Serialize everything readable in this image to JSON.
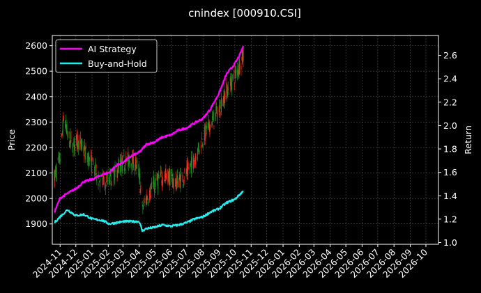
{
  "chart_data": {
    "type": "line",
    "title": "cnindex [000910.CSI]",
    "ylabel_left": "Price",
    "ylabel_right": "Return",
    "left_ylim": [
      1820,
      2640
    ],
    "left_yticks": [
      1900,
      2000,
      2100,
      2200,
      2300,
      2400,
      2500,
      2600
    ],
    "right_ylim": [
      0.985,
      2.77
    ],
    "right_yticks": [
      "1.0",
      "1.2",
      "1.4",
      "1.6",
      "1.8",
      "2.0",
      "2.2",
      "2.4",
      "2.6"
    ],
    "x_ticks": [
      "2024-11",
      "2024-12",
      "2025-01",
      "2025-02",
      "2025-03",
      "2025-04",
      "2025-05",
      "2025-06",
      "2025-07",
      "2025-08",
      "2025-09",
      "2025-10",
      "2025-11",
      "2025-12",
      "2026-01",
      "2026-02",
      "2026-03",
      "2026-04",
      "2026-05",
      "2026-06",
      "2026-07",
      "2026-08",
      "2026-09",
      "2026-10"
    ],
    "grid": true,
    "legend_position": "top-left",
    "colors": {
      "up": "#ff2a1a",
      "down": "#1f8f1f",
      "ai": "#ff00ff",
      "bh": "#22eeee",
      "background": "#000000"
    },
    "series": [
      {
        "name": "AI Strategy",
        "axis": "right",
        "points": [
          [
            "2024-10-21",
            1.26
          ],
          [
            "2024-11-01",
            1.38
          ],
          [
            "2024-11-15",
            1.42
          ],
          [
            "2024-12-01",
            1.46
          ],
          [
            "2024-12-16",
            1.52
          ],
          [
            "2025-01-02",
            1.54
          ],
          [
            "2025-01-20",
            1.58
          ],
          [
            "2025-02-03",
            1.6
          ],
          [
            "2025-02-17",
            1.66
          ],
          [
            "2025-03-03",
            1.69
          ],
          [
            "2025-03-17",
            1.74
          ],
          [
            "2025-04-01",
            1.77
          ],
          [
            "2025-04-15",
            1.84
          ],
          [
            "2025-05-01",
            1.86
          ],
          [
            "2025-05-15",
            1.9
          ],
          [
            "2025-06-01",
            1.92
          ],
          [
            "2025-06-15",
            1.96
          ],
          [
            "2025-07-01",
            1.98
          ],
          [
            "2025-07-15",
            2.02
          ],
          [
            "2025-08-01",
            2.06
          ],
          [
            "2025-08-15",
            2.14
          ],
          [
            "2025-09-01",
            2.28
          ],
          [
            "2025-09-15",
            2.44
          ],
          [
            "2025-10-01",
            2.53
          ],
          [
            "2025-10-10",
            2.6
          ],
          [
            "2025-10-17",
            2.68
          ]
        ]
      },
      {
        "name": "Buy-and-Hold",
        "axis": "right",
        "points": [
          [
            "2024-10-21",
            1.17
          ],
          [
            "2024-11-01",
            1.22
          ],
          [
            "2024-11-15",
            1.28
          ],
          [
            "2024-12-01",
            1.23
          ],
          [
            "2024-12-16",
            1.24
          ],
          [
            "2025-01-02",
            1.2
          ],
          [
            "2025-01-20",
            1.19
          ],
          [
            "2025-02-03",
            1.16
          ],
          [
            "2025-02-17",
            1.17
          ],
          [
            "2025-03-03",
            1.18
          ],
          [
            "2025-03-17",
            1.18
          ],
          [
            "2025-04-01",
            1.18
          ],
          [
            "2025-04-07",
            1.1
          ],
          [
            "2025-04-15",
            1.12
          ],
          [
            "2025-05-01",
            1.13
          ],
          [
            "2025-05-15",
            1.15
          ],
          [
            "2025-06-01",
            1.14
          ],
          [
            "2025-06-15",
            1.15
          ],
          [
            "2025-07-01",
            1.17
          ],
          [
            "2025-07-15",
            1.2
          ],
          [
            "2025-08-01",
            1.22
          ],
          [
            "2025-08-15",
            1.26
          ],
          [
            "2025-09-01",
            1.29
          ],
          [
            "2025-09-15",
            1.34
          ],
          [
            "2025-10-01",
            1.37
          ],
          [
            "2025-10-17",
            1.44
          ]
        ]
      }
    ],
    "price_path": [
      [
        "2024-10-21",
        2080
      ],
      [
        "2024-11-01",
        2160
      ],
      [
        "2024-11-08",
        2320
      ],
      [
        "2024-11-15",
        2250
      ],
      [
        "2024-11-25",
        2200
      ],
      [
        "2024-12-05",
        2230
      ],
      [
        "2024-12-16",
        2190
      ],
      [
        "2025-01-02",
        2130
      ],
      [
        "2025-01-13",
        2080
      ],
      [
        "2025-01-24",
        2060
      ],
      [
        "2025-02-10",
        2090
      ],
      [
        "2025-02-24",
        2130
      ],
      [
        "2025-03-10",
        2150
      ],
      [
        "2025-03-24",
        2140
      ],
      [
        "2025-04-01",
        2100
      ],
      [
        "2025-04-07",
        1960
      ],
      [
        "2025-04-15",
        2000
      ],
      [
        "2025-04-28",
        2050
      ],
      [
        "2025-05-12",
        2080
      ],
      [
        "2025-05-26",
        2090
      ],
      [
        "2025-06-09",
        2060
      ],
      [
        "2025-06-23",
        2080
      ],
      [
        "2025-07-07",
        2120
      ],
      [
        "2025-07-21",
        2180
      ],
      [
        "2025-08-04",
        2250
      ],
      [
        "2025-08-18",
        2300
      ],
      [
        "2025-09-01",
        2350
      ],
      [
        "2025-09-15",
        2420
      ],
      [
        "2025-10-01",
        2480
      ],
      [
        "2025-10-17",
        2560
      ]
    ]
  }
}
